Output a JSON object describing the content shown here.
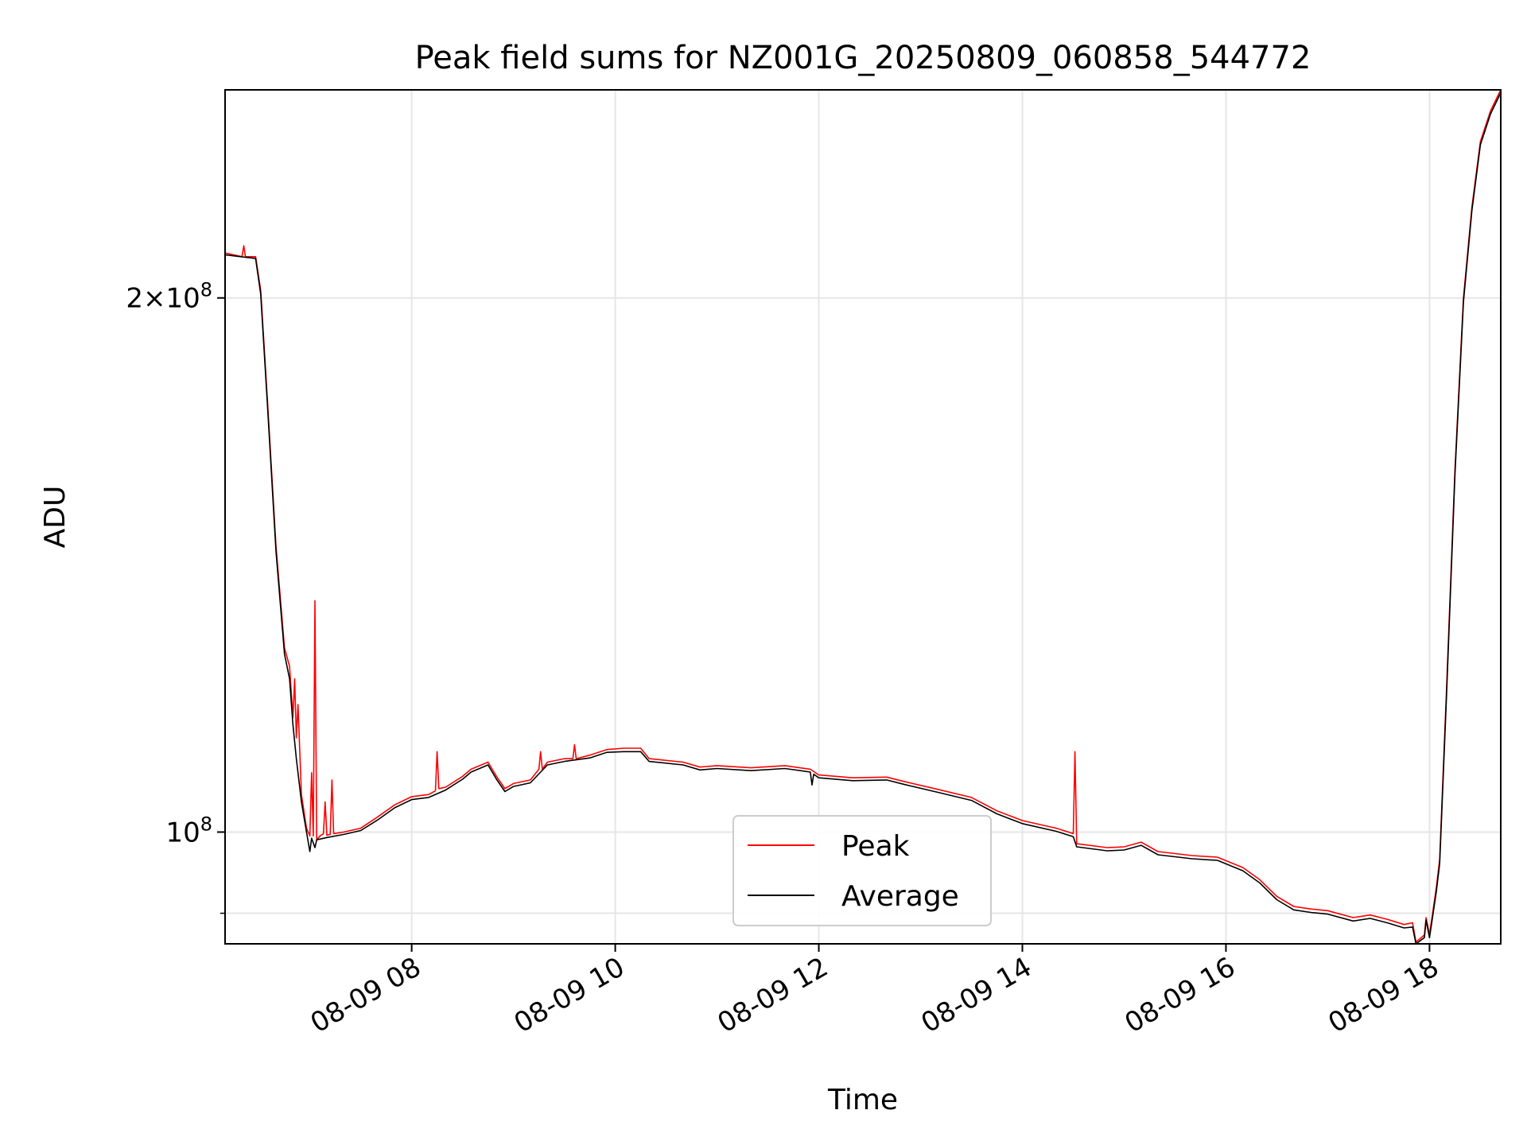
{
  "chart_data": {
    "type": "line",
    "title": "Peak field sums for NZ001G_20250809_060858_544772",
    "xlabel": "Time",
    "ylabel": "ADU",
    "y_scale": "log",
    "xlim": [
      "2025-08-09 06:10",
      "2025-08-09 18:42"
    ],
    "ylim": [
      86500000,
      262000000
    ],
    "x_ticks": [
      {
        "t": "2025-08-09 08:00",
        "label": "08-09 08"
      },
      {
        "t": "2025-08-09 10:00",
        "label": "08-09 10"
      },
      {
        "t": "2025-08-09 12:00",
        "label": "08-09 12"
      },
      {
        "t": "2025-08-09 14:00",
        "label": "08-09 14"
      },
      {
        "t": "2025-08-09 16:00",
        "label": "08-09 16"
      },
      {
        "t": "2025-08-09 18:00",
        "label": "08-09 18"
      }
    ],
    "y_ticks": [
      {
        "value": 100000000,
        "base": "10",
        "exp": "8"
      },
      {
        "value": 200000000,
        "mant": "2",
        "base": "10",
        "exp": "8"
      }
    ],
    "y_minor_gridlines": [
      90000000
    ],
    "grid": true,
    "legend": {
      "location": "lower center"
    },
    "series": [
      {
        "name": "Peak",
        "color": "#ff0000",
        "points": [
          [
            "2025-08-09 06:10",
            212000000
          ],
          [
            "2025-08-09 06:20",
            211000000
          ],
          [
            "2025-08-09 06:21",
            214000000
          ],
          [
            "2025-08-09 06:22",
            211000000
          ],
          [
            "2025-08-09 06:28",
            211000000
          ],
          [
            "2025-08-09 06:31",
            202000000
          ],
          [
            "2025-08-09 06:35",
            175000000
          ],
          [
            "2025-08-09 06:40",
            145000000
          ],
          [
            "2025-08-09 06:45",
            127000000
          ],
          [
            "2025-08-09 06:48",
            124000000
          ],
          [
            "2025-08-09 06:50",
            116000000
          ],
          [
            "2025-08-09 06:51",
            122000000
          ],
          [
            "2025-08-09 06:52",
            113000000
          ],
          [
            "2025-08-09 06:53",
            118000000
          ],
          [
            "2025-08-09 06:55",
            105000000
          ],
          [
            "2025-08-09 06:58",
            100500000
          ],
          [
            "2025-08-09 07:00",
            99500000
          ],
          [
            "2025-08-09 07:01",
            108000000
          ],
          [
            "2025-08-09 07:02",
            99500000
          ],
          [
            "2025-08-09 07:03",
            135000000
          ],
          [
            "2025-08-09 07:04",
            99000000
          ],
          [
            "2025-08-09 07:06",
            99500000
          ],
          [
            "2025-08-09 07:08",
            99800000
          ],
          [
            "2025-08-09 07:09",
            104000000
          ],
          [
            "2025-08-09 07:10",
            99600000
          ],
          [
            "2025-08-09 07:12",
            99700000
          ],
          [
            "2025-08-09 07:13",
            107000000
          ],
          [
            "2025-08-09 07:14",
            99800000
          ],
          [
            "2025-08-09 07:20",
            100000000
          ],
          [
            "2025-08-09 07:30",
            100500000
          ],
          [
            "2025-08-09 07:40",
            102000000
          ],
          [
            "2025-08-09 07:50",
            103600000
          ],
          [
            "2025-08-09 08:00",
            104700000
          ],
          [
            "2025-08-09 08:10",
            105000000
          ],
          [
            "2025-08-09 08:14",
            105500000
          ],
          [
            "2025-08-09 08:15",
            111000000
          ],
          [
            "2025-08-09 08:16",
            105800000
          ],
          [
            "2025-08-09 08:20",
            106000000
          ],
          [
            "2025-08-09 08:30",
            107500000
          ],
          [
            "2025-08-09 08:35",
            108500000
          ],
          [
            "2025-08-09 08:45",
            109500000
          ],
          [
            "2025-08-09 08:50",
            107500000
          ],
          [
            "2025-08-09 08:55",
            105800000
          ],
          [
            "2025-08-09 09:00",
            106500000
          ],
          [
            "2025-08-09 09:10",
            107000000
          ],
          [
            "2025-08-09 09:15",
            108500000
          ],
          [
            "2025-08-09 09:16",
            111000000
          ],
          [
            "2025-08-09 09:17",
            108500000
          ],
          [
            "2025-08-09 09:20",
            109500000
          ],
          [
            "2025-08-09 09:30",
            110000000
          ],
          [
            "2025-08-09 09:35",
            110000000
          ],
          [
            "2025-08-09 09:36",
            112000000
          ],
          [
            "2025-08-09 09:37",
            110000000
          ],
          [
            "2025-08-09 09:45",
            110500000
          ],
          [
            "2025-08-09 09:55",
            111300000
          ],
          [
            "2025-08-09 10:05",
            111500000
          ],
          [
            "2025-08-09 10:15",
            111500000
          ],
          [
            "2025-08-09 10:20",
            110000000
          ],
          [
            "2025-08-09 10:40",
            109500000
          ],
          [
            "2025-08-09 10:50",
            108800000
          ],
          [
            "2025-08-09 11:00",
            109000000
          ],
          [
            "2025-08-09 11:20",
            108700000
          ],
          [
            "2025-08-09 11:40",
            109000000
          ],
          [
            "2025-08-09 11:55",
            108500000
          ],
          [
            "2025-08-09 12:00",
            107700000
          ],
          [
            "2025-08-09 12:20",
            107300000
          ],
          [
            "2025-08-09 12:40",
            107400000
          ],
          [
            "2025-08-09 12:50",
            106800000
          ],
          [
            "2025-08-09 13:10",
            105700000
          ],
          [
            "2025-08-09 13:30",
            104600000
          ],
          [
            "2025-08-09 13:45",
            102800000
          ],
          [
            "2025-08-09 14:00",
            101500000
          ],
          [
            "2025-08-09 14:20",
            100500000
          ],
          [
            "2025-08-09 14:30",
            99800000
          ],
          [
            "2025-08-09 14:31",
            111000000
          ],
          [
            "2025-08-09 14:32",
            98500000
          ],
          [
            "2025-08-09 14:50",
            98000000
          ],
          [
            "2025-08-09 15:00",
            98100000
          ],
          [
            "2025-08-09 15:10",
            98700000
          ],
          [
            "2025-08-09 15:20",
            97500000
          ],
          [
            "2025-08-09 15:40",
            97000000
          ],
          [
            "2025-08-09 15:55",
            96800000
          ],
          [
            "2025-08-09 16:10",
            95500000
          ],
          [
            "2025-08-09 16:20",
            94000000
          ],
          [
            "2025-08-09 16:30",
            92000000
          ],
          [
            "2025-08-09 16:40",
            90800000
          ],
          [
            "2025-08-09 16:50",
            90500000
          ],
          [
            "2025-08-09 17:00",
            90300000
          ],
          [
            "2025-08-09 17:15",
            89500000
          ],
          [
            "2025-08-09 17:25",
            89800000
          ],
          [
            "2025-08-09 17:35",
            89300000
          ],
          [
            "2025-08-09 17:45",
            88700000
          ],
          [
            "2025-08-09 17:50",
            88900000
          ],
          [
            "2025-08-09 17:52",
            86700000
          ],
          [
            "2025-08-09 17:57",
            87500000
          ],
          [
            "2025-08-09 17:58",
            89500000
          ],
          [
            "2025-08-09 18:00",
            87500000
          ],
          [
            "2025-08-09 18:04",
            93000000
          ],
          [
            "2025-08-09 18:06",
            96500000
          ],
          [
            "2025-08-09 18:10",
            120000000
          ],
          [
            "2025-08-09 18:15",
            160000000
          ],
          [
            "2025-08-09 18:20",
            200000000
          ],
          [
            "2025-08-09 18:25",
            225000000
          ],
          [
            "2025-08-09 18:30",
            245000000
          ],
          [
            "2025-08-09 18:36",
            255000000
          ],
          [
            "2025-08-09 18:42",
            262000000
          ]
        ]
      },
      {
        "name": "Average",
        "color": "#000000",
        "points": [
          [
            "2025-08-09 06:10",
            211500000
          ],
          [
            "2025-08-09 06:28",
            210500000
          ],
          [
            "2025-08-09 06:31",
            201000000
          ],
          [
            "2025-08-09 06:35",
            174000000
          ],
          [
            "2025-08-09 06:40",
            144000000
          ],
          [
            "2025-08-09 06:45",
            126000000
          ],
          [
            "2025-08-09 06:48",
            122000000
          ],
          [
            "2025-08-09 06:50",
            115000000
          ],
          [
            "2025-08-09 06:52",
            110000000
          ],
          [
            "2025-08-09 06:55",
            104000000
          ],
          [
            "2025-08-09 06:58",
            100000000
          ],
          [
            "2025-08-09 07:00",
            97500000
          ],
          [
            "2025-08-09 07:01",
            99200000
          ],
          [
            "2025-08-09 07:03",
            98000000
          ],
          [
            "2025-08-09 07:04",
            99000000
          ],
          [
            "2025-08-09 07:10",
            99300000
          ],
          [
            "2025-08-09 07:20",
            99700000
          ],
          [
            "2025-08-09 07:30",
            100200000
          ],
          [
            "2025-08-09 07:40",
            101600000
          ],
          [
            "2025-08-09 07:50",
            103200000
          ],
          [
            "2025-08-09 08:00",
            104300000
          ],
          [
            "2025-08-09 08:10",
            104600000
          ],
          [
            "2025-08-09 08:20",
            105600000
          ],
          [
            "2025-08-09 08:30",
            107100000
          ],
          [
            "2025-08-09 08:35",
            108100000
          ],
          [
            "2025-08-09 08:45",
            109100000
          ],
          [
            "2025-08-09 08:50",
            107100000
          ],
          [
            "2025-08-09 08:55",
            105400000
          ],
          [
            "2025-08-09 09:00",
            106100000
          ],
          [
            "2025-08-09 09:10",
            106600000
          ],
          [
            "2025-08-09 09:20",
            109100000
          ],
          [
            "2025-08-09 09:30",
            109600000
          ],
          [
            "2025-08-09 09:45",
            110100000
          ],
          [
            "2025-08-09 09:55",
            110900000
          ],
          [
            "2025-08-09 10:05",
            111000000
          ],
          [
            "2025-08-09 10:15",
            111000000
          ],
          [
            "2025-08-09 10:20",
            109600000
          ],
          [
            "2025-08-09 10:40",
            109100000
          ],
          [
            "2025-08-09 10:50",
            108400000
          ],
          [
            "2025-08-09 11:00",
            108600000
          ],
          [
            "2025-08-09 11:20",
            108300000
          ],
          [
            "2025-08-09 11:40",
            108600000
          ],
          [
            "2025-08-09 11:55",
            108100000
          ],
          [
            "2025-08-09 11:56",
            106300000
          ],
          [
            "2025-08-09 11:57",
            107800000
          ],
          [
            "2025-08-09 12:00",
            107300000
          ],
          [
            "2025-08-09 12:20",
            106900000
          ],
          [
            "2025-08-09 12:40",
            107000000
          ],
          [
            "2025-08-09 12:50",
            106400000
          ],
          [
            "2025-08-09 13:10",
            105300000
          ],
          [
            "2025-08-09 13:30",
            104200000
          ],
          [
            "2025-08-09 13:45",
            102400000
          ],
          [
            "2025-08-09 14:00",
            101100000
          ],
          [
            "2025-08-09 14:20",
            100100000
          ],
          [
            "2025-08-09 14:30",
            99400000
          ],
          [
            "2025-08-09 14:32",
            98100000
          ],
          [
            "2025-08-09 14:50",
            97600000
          ],
          [
            "2025-08-09 15:00",
            97700000
          ],
          [
            "2025-08-09 15:10",
            98300000
          ],
          [
            "2025-08-09 15:20",
            97100000
          ],
          [
            "2025-08-09 15:40",
            96600000
          ],
          [
            "2025-08-09 15:55",
            96400000
          ],
          [
            "2025-08-09 16:10",
            95100000
          ],
          [
            "2025-08-09 16:20",
            93600000
          ],
          [
            "2025-08-09 16:30",
            91600000
          ],
          [
            "2025-08-09 16:40",
            90400000
          ],
          [
            "2025-08-09 16:50",
            90100000
          ],
          [
            "2025-08-09 17:00",
            89900000
          ],
          [
            "2025-08-09 17:15",
            89100000
          ],
          [
            "2025-08-09 17:25",
            89400000
          ],
          [
            "2025-08-09 17:35",
            88900000
          ],
          [
            "2025-08-09 17:45",
            88300000
          ],
          [
            "2025-08-09 17:50",
            88400000
          ],
          [
            "2025-08-09 17:52",
            86500000
          ],
          [
            "2025-08-09 17:57",
            87200000
          ],
          [
            "2025-08-09 17:58",
            89200000
          ],
          [
            "2025-08-09 18:00",
            87200000
          ],
          [
            "2025-08-09 18:04",
            92500000
          ],
          [
            "2025-08-09 18:06",
            96000000
          ],
          [
            "2025-08-09 18:10",
            119000000
          ],
          [
            "2025-08-09 18:15",
            159000000
          ],
          [
            "2025-08-09 18:20",
            199000000
          ],
          [
            "2025-08-09 18:25",
            224000000
          ],
          [
            "2025-08-09 18:30",
            244000000
          ],
          [
            "2025-08-09 18:36",
            254000000
          ],
          [
            "2025-08-09 18:42",
            261000000
          ]
        ]
      }
    ]
  }
}
